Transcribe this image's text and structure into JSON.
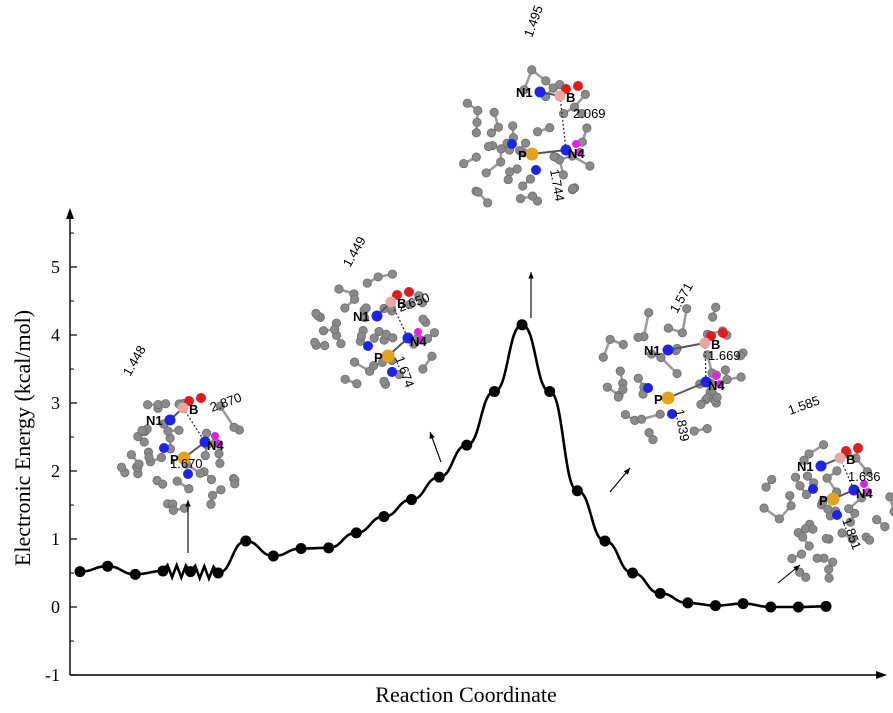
{
  "chart_data": {
    "type": "line",
    "xlabel": "Reaction Coordinate",
    "ylabel": "Electronic Energy (kcal/mol)",
    "ylim": [
      -1,
      5.7
    ],
    "yticks": [
      "-1",
      "0",
      "1",
      "2",
      "3",
      "4",
      "5"
    ],
    "grid": false,
    "series": [
      {
        "marker": "circle",
        "x": [
          0,
          1,
          2,
          3,
          4,
          5,
          6,
          7,
          8,
          9,
          10,
          11,
          12,
          13,
          14,
          15,
          16,
          17,
          18,
          19,
          20,
          21,
          22,
          23,
          24,
          25,
          26,
          27
        ],
        "y": [
          0.52,
          0.6,
          0.48,
          0.53,
          0.52,
          0.5,
          0.97,
          0.75,
          0.86,
          0.87,
          1.09,
          1.33,
          1.58,
          1.91,
          2.38,
          3.17,
          4.15,
          3.17,
          1.71,
          0.97,
          0.5,
          0.2,
          0.06,
          0.02,
          0.05,
          0.0,
          0.0,
          0.01
        ]
      }
    ],
    "structures": [
      {
        "atoms": [
          "N1",
          "B",
          "N4",
          "P"
        ],
        "distances": [
          "1.448",
          "2.870",
          "1.670"
        ]
      },
      {
        "atoms": [
          "N1",
          "B",
          "N4",
          "P"
        ],
        "distances": [
          "1.449",
          "2.650",
          "1.674"
        ]
      },
      {
        "atoms": [
          "N1",
          "B",
          "N4",
          "P"
        ],
        "distances": [
          "1.495",
          "2.069",
          "1.744"
        ]
      },
      {
        "atoms": [
          "N1",
          "B",
          "N4",
          "P"
        ],
        "distances": [
          "1.571",
          "1.669",
          "1.839"
        ]
      },
      {
        "atoms": [
          "N1",
          "B",
          "N4",
          "P"
        ],
        "distances": [
          "1.585",
          "1.636",
          "1.851"
        ]
      }
    ]
  },
  "colors": {
    "curve": "#000000",
    "carbon_atom": "#8a8a8a",
    "nitrogen_atom": "#1f23e6",
    "oxygen_atom": "#e01c1c",
    "boron_atom": "#e8a7a7",
    "phosphorus_atom": "#e3a320",
    "fluorine_atom": "#e021e0"
  }
}
